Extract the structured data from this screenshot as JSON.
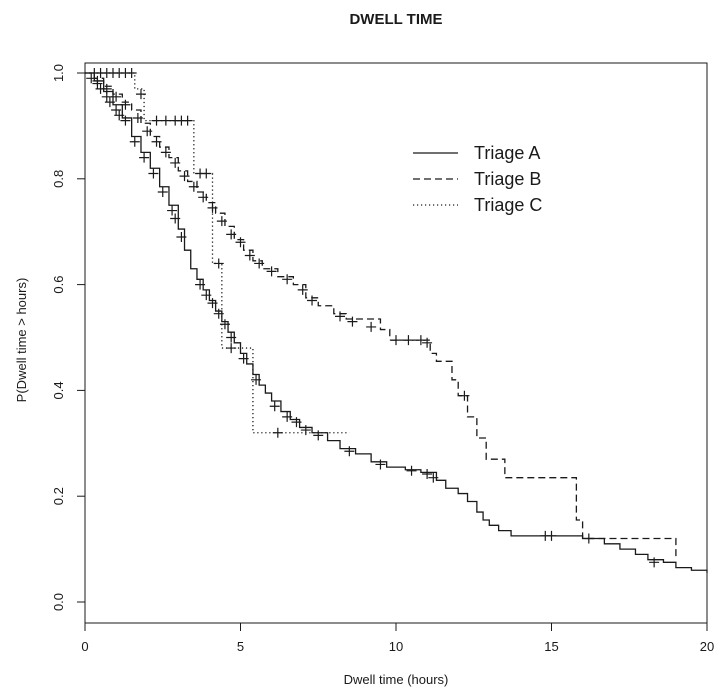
{
  "chart_data": {
    "type": "line",
    "subtype": "kaplan-meier-step",
    "title": "DWELL TIME",
    "xlabel": "Dwell time (hours)",
    "ylabel": "P(Dwell time > hours)",
    "xlim": [
      0,
      20
    ],
    "ylim": [
      0,
      1
    ],
    "x_ticks": [
      0,
      5,
      10,
      15,
      20
    ],
    "x_tick_labels": [
      "0",
      "5",
      "10",
      "15",
      "20"
    ],
    "y_ticks": [
      0,
      0.2,
      0.4,
      0.6,
      0.8,
      1
    ],
    "y_tick_labels": [
      "0.0",
      "0.2",
      "0.4",
      "0.6",
      "0.8",
      "1.0"
    ],
    "grid": false,
    "legend_position": "top-right",
    "series": [
      {
        "name": "Triage A",
        "line_style": "solid",
        "steps": [
          [
            0,
            1.0
          ],
          [
            0.3,
            0.985
          ],
          [
            0.6,
            0.965
          ],
          [
            0.9,
            0.94
          ],
          [
            1.2,
            0.915
          ],
          [
            1.5,
            0.88
          ],
          [
            1.8,
            0.85
          ],
          [
            2.1,
            0.82
          ],
          [
            2.4,
            0.785
          ],
          [
            2.7,
            0.75
          ],
          [
            3.0,
            0.705
          ],
          [
            3.2,
            0.665
          ],
          [
            3.4,
            0.63
          ],
          [
            3.6,
            0.61
          ],
          [
            3.8,
            0.59
          ],
          [
            4.0,
            0.57
          ],
          [
            4.2,
            0.55
          ],
          [
            4.4,
            0.53
          ],
          [
            4.6,
            0.51
          ],
          [
            4.8,
            0.49
          ],
          [
            5.0,
            0.47
          ],
          [
            5.2,
            0.45
          ],
          [
            5.4,
            0.43
          ],
          [
            5.6,
            0.41
          ],
          [
            5.8,
            0.395
          ],
          [
            6.0,
            0.38
          ],
          [
            6.3,
            0.36
          ],
          [
            6.6,
            0.345
          ],
          [
            6.9,
            0.33
          ],
          [
            7.3,
            0.32
          ],
          [
            7.8,
            0.305
          ],
          [
            8.2,
            0.29
          ],
          [
            8.7,
            0.28
          ],
          [
            9.2,
            0.265
          ],
          [
            9.7,
            0.255
          ],
          [
            10.3,
            0.25
          ],
          [
            10.8,
            0.245
          ],
          [
            11.3,
            0.23
          ],
          [
            11.6,
            0.215
          ],
          [
            12.0,
            0.205
          ],
          [
            12.3,
            0.19
          ],
          [
            12.6,
            0.17
          ],
          [
            12.8,
            0.155
          ],
          [
            13.0,
            0.145
          ],
          [
            13.3,
            0.135
          ],
          [
            13.7,
            0.125
          ],
          [
            16.0,
            0.12
          ],
          [
            16.7,
            0.11
          ],
          [
            17.2,
            0.1
          ],
          [
            17.7,
            0.09
          ],
          [
            18.1,
            0.08
          ],
          [
            18.6,
            0.075
          ],
          [
            19.0,
            0.065
          ],
          [
            19.5,
            0.06
          ],
          [
            20.0,
            0.055
          ]
        ],
        "censored": [
          [
            0.2,
            0.99
          ],
          [
            0.4,
            0.98
          ],
          [
            0.5,
            0.97
          ],
          [
            0.7,
            0.955
          ],
          [
            0.8,
            0.945
          ],
          [
            1.0,
            0.93
          ],
          [
            1.1,
            0.92
          ],
          [
            1.3,
            0.91
          ],
          [
            1.6,
            0.87
          ],
          [
            1.9,
            0.84
          ],
          [
            2.2,
            0.81
          ],
          [
            2.5,
            0.775
          ],
          [
            2.8,
            0.74
          ],
          [
            2.9,
            0.725
          ],
          [
            3.1,
            0.69
          ],
          [
            3.7,
            0.6
          ],
          [
            3.9,
            0.58
          ],
          [
            4.1,
            0.565
          ],
          [
            4.3,
            0.545
          ],
          [
            4.5,
            0.525
          ],
          [
            4.7,
            0.5
          ],
          [
            5.1,
            0.46
          ],
          [
            5.5,
            0.42
          ],
          [
            6.1,
            0.37
          ],
          [
            6.5,
            0.35
          ],
          [
            6.8,
            0.34
          ],
          [
            7.1,
            0.325
          ],
          [
            7.5,
            0.315
          ],
          [
            8.5,
            0.285
          ],
          [
            9.5,
            0.26
          ],
          [
            10.5,
            0.248
          ],
          [
            11.0,
            0.242
          ],
          [
            11.2,
            0.235
          ],
          [
            14.8,
            0.125
          ],
          [
            15.0,
            0.125
          ],
          [
            18.3,
            0.075
          ]
        ]
      },
      {
        "name": "Triage B",
        "line_style": "dashed",
        "steps": [
          [
            0,
            1.0
          ],
          [
            0.3,
            0.99
          ],
          [
            0.6,
            0.975
          ],
          [
            0.9,
            0.96
          ],
          [
            1.2,
            0.945
          ],
          [
            1.5,
            0.93
          ],
          [
            1.8,
            0.905
          ],
          [
            2.1,
            0.88
          ],
          [
            2.4,
            0.86
          ],
          [
            2.7,
            0.84
          ],
          [
            3.0,
            0.815
          ],
          [
            3.3,
            0.795
          ],
          [
            3.6,
            0.775
          ],
          [
            3.9,
            0.755
          ],
          [
            4.2,
            0.735
          ],
          [
            4.5,
            0.71
          ],
          [
            4.8,
            0.685
          ],
          [
            5.1,
            0.665
          ],
          [
            5.4,
            0.645
          ],
          [
            5.7,
            0.63
          ],
          [
            6.2,
            0.615
          ],
          [
            6.7,
            0.6
          ],
          [
            7.1,
            0.575
          ],
          [
            7.5,
            0.56
          ],
          [
            8.0,
            0.545
          ],
          [
            8.4,
            0.535
          ],
          [
            9.5,
            0.515
          ],
          [
            9.8,
            0.495
          ],
          [
            11.1,
            0.47
          ],
          [
            11.3,
            0.455
          ],
          [
            11.8,
            0.42
          ],
          [
            12.0,
            0.39
          ],
          [
            12.3,
            0.35
          ],
          [
            12.6,
            0.31
          ],
          [
            12.9,
            0.27
          ],
          [
            13.5,
            0.235
          ],
          [
            15.8,
            0.155
          ],
          [
            16.0,
            0.12
          ],
          [
            19.0,
            0.08
          ]
        ],
        "censored": [
          [
            0.4,
            0.985
          ],
          [
            0.7,
            0.97
          ],
          [
            1.0,
            0.955
          ],
          [
            1.3,
            0.94
          ],
          [
            1.7,
            0.915
          ],
          [
            2.0,
            0.89
          ],
          [
            2.3,
            0.87
          ],
          [
            2.6,
            0.85
          ],
          [
            2.9,
            0.83
          ],
          [
            3.2,
            0.805
          ],
          [
            3.5,
            0.785
          ],
          [
            3.8,
            0.765
          ],
          [
            4.1,
            0.745
          ],
          [
            4.4,
            0.72
          ],
          [
            4.7,
            0.695
          ],
          [
            5.0,
            0.68
          ],
          [
            5.3,
            0.655
          ],
          [
            5.6,
            0.64
          ],
          [
            6.0,
            0.625
          ],
          [
            6.5,
            0.61
          ],
          [
            7.0,
            0.59
          ],
          [
            7.3,
            0.57
          ],
          [
            8.2,
            0.54
          ],
          [
            8.6,
            0.53
          ],
          [
            9.2,
            0.52
          ],
          [
            10.0,
            0.495
          ],
          [
            10.4,
            0.495
          ],
          [
            10.8,
            0.495
          ],
          [
            11.0,
            0.49
          ],
          [
            12.2,
            0.39
          ],
          [
            16.2,
            0.12
          ]
        ]
      },
      {
        "name": "Triage C",
        "line_style": "dotted",
        "steps": [
          [
            0,
            1.0
          ],
          [
            1.6,
            0.97
          ],
          [
            1.9,
            0.91
          ],
          [
            3.5,
            0.81
          ],
          [
            4.1,
            0.64
          ],
          [
            4.4,
            0.48
          ],
          [
            5.4,
            0.32
          ],
          [
            8.5,
            0.32
          ]
        ],
        "censored": [
          [
            0.3,
            1.0
          ],
          [
            0.5,
            1.0
          ],
          [
            0.7,
            1.0
          ],
          [
            0.9,
            1.0
          ],
          [
            1.1,
            1.0
          ],
          [
            1.3,
            1.0
          ],
          [
            1.5,
            1.0
          ],
          [
            1.8,
            0.96
          ],
          [
            2.3,
            0.91
          ],
          [
            2.6,
            0.91
          ],
          [
            2.9,
            0.91
          ],
          [
            3.1,
            0.91
          ],
          [
            3.3,
            0.91
          ],
          [
            3.7,
            0.81
          ],
          [
            3.9,
            0.81
          ],
          [
            4.3,
            0.64
          ],
          [
            4.7,
            0.48
          ],
          [
            6.2,
            0.32
          ]
        ]
      }
    ]
  }
}
